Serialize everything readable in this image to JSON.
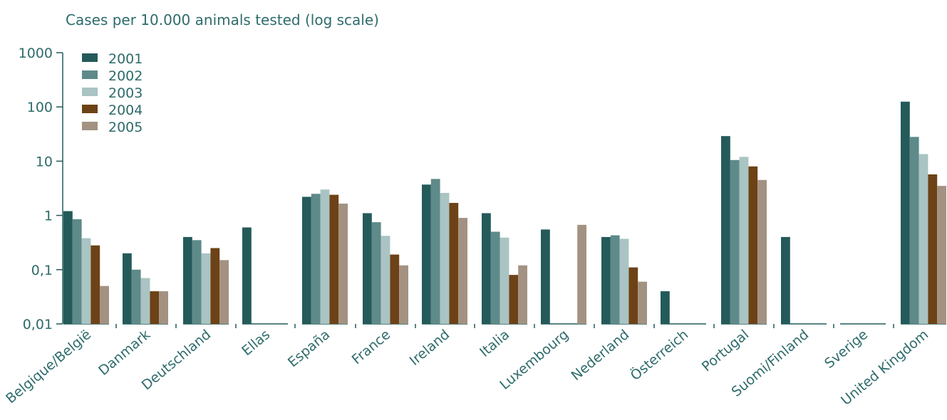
{
  "chart_data": {
    "type": "bar",
    "title": "Cases per 10.000 animals tested (log scale)",
    "ylabel": "",
    "xlabel": "",
    "yscale": "log",
    "ylim": [
      0.01,
      1000
    ],
    "yticks": [
      "1000",
      "100",
      "10",
      "1",
      "0,1",
      "0,01"
    ],
    "ytick_values": [
      1000,
      100,
      10,
      1,
      0.1,
      0.01
    ],
    "grid": false,
    "legend_position": "top-left",
    "categories": [
      "Belgique/België",
      "Danmark",
      "Deutschland",
      "Ellas",
      "España",
      "France",
      "Ireland",
      "Italia",
      "Luxembourg",
      "Nederland",
      "Österreich",
      "Portugal",
      "Suomi/Finland",
      "Sverige",
      "United Kingdom"
    ],
    "series": [
      {
        "name": "2001",
        "color": "#245a5a",
        "values": [
          1.2,
          0.2,
          0.4,
          0.6,
          2.2,
          1.1,
          3.7,
          1.1,
          0.55,
          0.4,
          0.04,
          29,
          0.4,
          null,
          125
        ]
      },
      {
        "name": "2002",
        "color": "#5e8a89",
        "values": [
          0.85,
          0.1,
          0.35,
          null,
          2.5,
          0.75,
          4.7,
          0.5,
          null,
          0.43,
          null,
          10.5,
          null,
          null,
          28
        ]
      },
      {
        "name": "2003",
        "color": "#a9c4c3",
        "values": [
          0.38,
          0.07,
          0.2,
          null,
          3.0,
          0.42,
          2.6,
          0.39,
          null,
          0.37,
          null,
          12,
          null,
          null,
          13.5
        ]
      },
      {
        "name": "2004",
        "color": "#6d4216",
        "values": [
          0.28,
          0.04,
          0.25,
          null,
          2.4,
          0.19,
          1.7,
          0.08,
          null,
          0.11,
          null,
          8,
          null,
          null,
          5.7
        ]
      },
      {
        "name": "2005",
        "color": "#a39282",
        "values": [
          0.05,
          0.04,
          0.15,
          null,
          1.65,
          0.12,
          0.9,
          0.12,
          0.67,
          0.06,
          null,
          4.5,
          null,
          null,
          3.5
        ]
      }
    ]
  }
}
